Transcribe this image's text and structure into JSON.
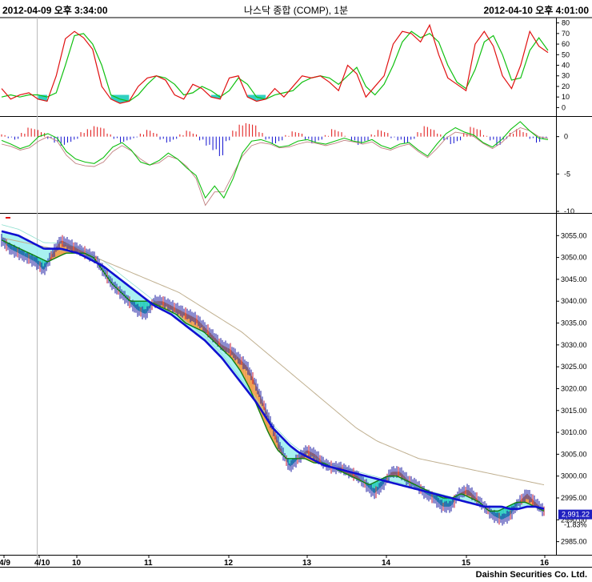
{
  "header": {
    "left": "2012-04-09 오후 3:34:00",
    "center": "나스닥 종합 (COMP), 1분",
    "right": "2012-04-10 오후 4:01:00"
  },
  "footer": "Daishin Securities Co. Ltd.",
  "colors": {
    "price_bar": "#1a1aa0",
    "price_bar_alt": "#c01030",
    "ma_long": "#1010d0",
    "ma_short": "#108010",
    "ma_slow": "#c0b090",
    "ma_thin": "#90e0d0",
    "fill_below": "#a0f0f0",
    "fill_above": "#f0a050",
    "stoch_k": "#e01010",
    "stoch_d": "#10c010",
    "macd_pos": "#e01010",
    "macd_neg": "#1010d0",
    "macd_signal": "#10c010",
    "macd_line": "#c08080",
    "last_price_bg": "#2020c0"
  },
  "chart_data": [
    {
      "type": "line",
      "panel": "stochastic",
      "y_ticks": [
        "80",
        "70",
        "60",
        "50",
        "40",
        "30",
        "20",
        "10",
        "0"
      ],
      "ylim": [
        -5,
        82
      ],
      "series": [
        {
          "values": [
            18,
            8,
            12,
            14,
            8,
            6,
            30,
            65,
            72,
            66,
            55,
            20,
            8,
            4,
            6,
            20,
            28,
            30,
            26,
            12,
            8,
            22,
            18,
            10,
            8,
            28,
            30,
            10,
            6,
            8,
            18,
            10,
            20,
            30,
            28,
            30,
            24,
            16,
            40,
            32,
            10,
            20,
            30,
            60,
            72,
            70,
            62,
            78,
            50,
            28,
            22,
            16,
            60,
            72,
            58,
            30,
            18,
            40,
            72,
            58,
            52
          ]
        },
        {
          "values": [
            10,
            12,
            10,
            12,
            12,
            10,
            14,
            40,
            68,
            70,
            60,
            40,
            12,
            8,
            6,
            12,
            22,
            30,
            28,
            22,
            12,
            14,
            20,
            16,
            10,
            16,
            28,
            22,
            10,
            8,
            12,
            14,
            16,
            24,
            28,
            30,
            28,
            22,
            30,
            38,
            20,
            12,
            22,
            40,
            62,
            72,
            66,
            70,
            62,
            40,
            24,
            18,
            36,
            62,
            68,
            50,
            26,
            28,
            54,
            66,
            54
          ]
        }
      ]
    },
    {
      "type": "bar",
      "panel": "macd",
      "y_ticks": [
        "0",
        "-5",
        "-10"
      ],
      "ylim": [
        -10,
        2
      ],
      "series": [
        {
          "values": [
            0.3,
            -0.2,
            -0.4,
            0.5,
            1.2,
            1.0,
            0.6,
            -0.3,
            -0.8,
            -1.2,
            -0.8,
            -0.4,
            0.6,
            1.0,
            1.4,
            1.2,
            0.4,
            -0.3,
            -0.8,
            -0.5,
            -0.2,
            0.4,
            0.9,
            0.5,
            -0.4,
            -0.8,
            -0.4,
            0.3,
            0.8,
            0.4,
            -0.5,
            -1.2,
            -1.8,
            -2.6,
            -0.6,
            0.8,
            1.6,
            1.8,
            1.6,
            0.6,
            -0.4,
            -1.0,
            -0.6,
            0.2,
            0.7,
            0.5,
            -0.4,
            -0.9,
            -0.5,
            0.2,
            1.0,
            0.7,
            0.1,
            -0.6,
            -1.1,
            -0.6,
            0.3,
            0.9,
            0.6,
            -0.2,
            -0.5,
            -0.9,
            -0.4,
            0.6,
            1.4,
            1.0,
            0.4,
            -0.5,
            -1.0,
            -0.6,
            0.5,
            1.3,
            1.0,
            0.2,
            -0.5,
            -1.2,
            -0.4,
            0.5,
            1.0,
            0.6,
            -0.3,
            -0.8,
            -0.3
          ]
        },
        {
          "values": [
            -0.5,
            -1.0,
            -1.6,
            -1.2,
            0.0,
            0.4,
            -0.2,
            -2.0,
            -3.0,
            -3.4,
            -3.6,
            -2.8,
            -1.4,
            -0.8,
            -1.8,
            -3.4,
            -3.8,
            -3.2,
            -2.2,
            -3.0,
            -4.2,
            -5.2,
            -8.2,
            -6.6,
            -8.2,
            -5.6,
            -2.2,
            -0.6,
            -0.4,
            -0.8,
            -1.4,
            -1.2,
            -0.6,
            -0.4,
            -0.8,
            -1.0,
            -0.6,
            -0.2,
            -0.6,
            -0.8,
            -0.4,
            -1.2,
            -1.6,
            -1.0,
            -0.8,
            -1.8,
            -2.6,
            -1.0,
            0.4,
            1.2,
            0.6,
            0.2,
            -0.8,
            -1.4,
            -0.4,
            1.0,
            2.0,
            0.8,
            -0.2,
            -0.4
          ]
        },
        {
          "values": [
            -1.0,
            -1.3,
            -1.8,
            -1.5,
            -0.6,
            0.0,
            -0.6,
            -2.5,
            -3.6,
            -3.9,
            -4.0,
            -3.4,
            -2.0,
            -1.2,
            -1.9,
            -3.0,
            -3.8,
            -3.5,
            -2.6,
            -3.0,
            -4.0,
            -5.6,
            -9.2,
            -7.4,
            -7.4,
            -5.0,
            -2.6,
            -1.2,
            -0.8,
            -1.0,
            -1.5,
            -1.4,
            -1.0,
            -0.7,
            -0.9,
            -1.2,
            -0.9,
            -0.5,
            -0.7,
            -1.0,
            -0.7,
            -1.5,
            -1.8,
            -1.3,
            -1.0,
            -2.0,
            -2.8,
            -1.6,
            -0.2,
            0.6,
            0.4,
            0.0,
            -0.9,
            -1.6,
            -0.8,
            0.4,
            1.2,
            0.8,
            0.0,
            -0.2
          ]
        }
      ]
    },
    {
      "type": "line",
      "panel": "price",
      "x_ticks": [
        "4/9",
        "4/10",
        "10",
        "11",
        "12",
        "13",
        "14",
        "15",
        "16"
      ],
      "y_ticks": [
        "3055.00",
        "3050.00",
        "3045.00",
        "3040.00",
        "3035.00",
        "3030.00",
        "3025.00",
        "3020.00",
        "3015.00",
        "3010.00",
        "3005.00",
        "3000.00",
        "2995.00",
        "2990.00",
        "2985.00"
      ],
      "ylim": [
        2982,
        3060
      ],
      "last_price": "2,991.22",
      "last_change": "-1.83%",
      "series": [
        {
          "values": [
            3054,
            3052,
            3051,
            3050,
            3049,
            3047,
            3051,
            3054,
            3053,
            3052,
            3051,
            3050,
            3047,
            3044,
            3042,
            3040,
            3038,
            3037,
            3040,
            3040,
            3039,
            3038,
            3037,
            3036,
            3034,
            3032,
            3030,
            3029,
            3027,
            3025,
            3021,
            3016,
            3011,
            3006,
            3002,
            3004,
            3006,
            3005,
            3003,
            3002,
            3002,
            3001,
            3000,
            2998,
            2996,
            2998,
            3001,
            3001,
            2999,
            2998,
            2996,
            2995,
            2993,
            2993,
            2996,
            2997,
            2995,
            2993,
            2991,
            2990,
            2991,
            2994,
            2996,
            2994,
            2992
          ]
        },
        {
          "values": [
            3056,
            3055.5,
            3055,
            3054,
            3053,
            3052,
            3052,
            3052,
            3051.5,
            3051,
            3050,
            3049,
            3048,
            3046.5,
            3045,
            3043.5,
            3042,
            3040.5,
            3039,
            3038,
            3037,
            3035.5,
            3034,
            3032.5,
            3031,
            3029,
            3027,
            3024.5,
            3022,
            3019.5,
            3017,
            3014,
            3011,
            3009,
            3007,
            3005.5,
            3004.5,
            3003.5,
            3002.5,
            3002,
            3001.5,
            3001,
            3000.5,
            3000,
            2999.5,
            2999,
            2998.5,
            2998,
            2997.5,
            2997,
            2996.5,
            2996,
            2995.5,
            2995,
            2994.5,
            2994,
            2993.5,
            2993,
            2993,
            2993,
            2992.5,
            2992.5,
            2993,
            2993,
            2992.5
          ]
        },
        {
          "values": [
            3054,
            3053,
            3052,
            3051,
            3050,
            3049,
            3050,
            3051,
            3051,
            3051,
            3050,
            3047,
            3044,
            3042,
            3040,
            3040,
            3040,
            3039,
            3038,
            3037,
            3035,
            3034,
            3033,
            3031,
            3029,
            3027,
            3024,
            3020,
            3015,
            3010,
            3006,
            3004,
            3004,
            3004,
            3003,
            3003,
            3002,
            3001,
            3000,
            2999,
            2998,
            2999,
            3000,
            3000,
            2999,
            2998,
            2997,
            2996,
            2995,
            2995,
            2996,
            2995,
            2994,
            2992,
            2992,
            2993,
            2994,
            2994,
            2993,
            2992
          ]
        },
        {
          "values": [
            3054.5,
            3054,
            3053.5,
            3053,
            3052.5,
            3052,
            3051.5,
            3051,
            3050.5,
            3050,
            3049,
            3048,
            3047,
            3046,
            3045,
            3044,
            3043,
            3042,
            3040.5,
            3039,
            3037.5,
            3036,
            3034.5,
            3033,
            3031,
            3029,
            3027,
            3025,
            3023,
            3021,
            3019,
            3017,
            3015,
            3013,
            3011,
            3009.5,
            3008,
            3007,
            3006,
            3005,
            3004,
            3003.5,
            3003,
            3002.5,
            3002,
            3001.5,
            3001,
            3000.5,
            3000,
            2999.5,
            2999,
            2998.5,
            2998
          ]
        }
      ]
    }
  ]
}
